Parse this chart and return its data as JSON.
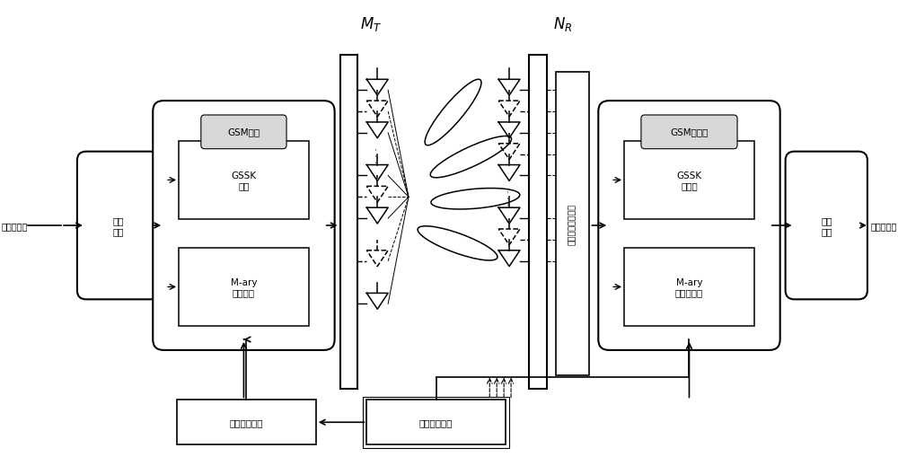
{
  "bg_color": "#ffffff",
  "input_label": "输入比特流",
  "output_label": "输出比特流",
  "data_split_label": "数据\n分组",
  "data_merge_label": "数据\n重组",
  "gsm_map_label": "GSM映射",
  "gsm_demap_label": "GSM解映射",
  "gssk_map_label": "GSSK\n映射",
  "mary_map_label": "M-ary\n星座映射",
  "gssk_demap_label": "GSSK\n解映射",
  "mary_demap_label": "M-ary\n星座解映射",
  "ml_detect_label": "最优最大似然检测",
  "tx_select_label": "发送天线选择",
  "sel_feedback_label": "选择结果反馈",
  "MT_label": "$M_T$",
  "NR_label": "$N_R$"
}
